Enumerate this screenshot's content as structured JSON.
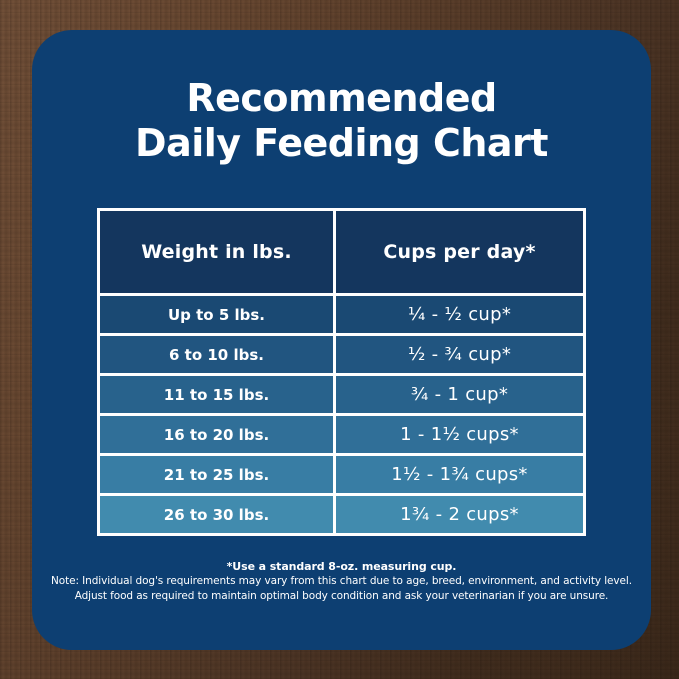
{
  "title": {
    "line1": "Recommended",
    "line2": "Daily Feeding Chart"
  },
  "table": {
    "headers": {
      "weight": "Weight in lbs.",
      "cups": "Cups per day*"
    },
    "rows": [
      {
        "weight": "Up to 5 lbs.",
        "cups": "¼ - ½ cup*"
      },
      {
        "weight": "6 to 10 lbs.",
        "cups": "½ - ¾ cup*"
      },
      {
        "weight": "11 to 15 lbs.",
        "cups": "¾ - 1 cup*"
      },
      {
        "weight": "16 to 20 lbs.",
        "cups": "1 - 1½ cups*"
      },
      {
        "weight": "21 to 25 lbs.",
        "cups": "1½ - 1¾ cups*"
      },
      {
        "weight": "26 to 30 lbs.",
        "cups": "1¾ - 2 cups*"
      }
    ],
    "header_color": "#14365e",
    "row_colors": [
      "#1a4973",
      "#215580",
      "#28628c",
      "#306f98",
      "#387da4",
      "#418bae"
    ],
    "border_color": "#ffffff"
  },
  "footnotes": {
    "line1": "*Use a standard 8-oz. measuring cup.",
    "line2": "Note: Individual dog's requirements may vary from this chart due to age, breed, environment, and activity level.",
    "line3": "Adjust food as required to maintain optimal body condition and ask your veterinarian if you are unsure."
  },
  "colors": {
    "card_background": "#0d3f72",
    "wood_light": "#74523a",
    "wood_dark": "#3a281a",
    "text": "#ffffff"
  },
  "chart_data": {
    "type": "table",
    "title": "Recommended Daily Feeding Chart",
    "columns": [
      "Weight in lbs.",
      "Cups per day*"
    ],
    "rows": [
      [
        "Up to 5 lbs.",
        "¼ - ½ cup*"
      ],
      [
        "6 to 10 lbs.",
        "½ - ¾ cup*"
      ],
      [
        "11 to 15 lbs.",
        "¾ - 1 cup*"
      ],
      [
        "16 to 20 lbs.",
        "1 - 1½ cups*"
      ],
      [
        "21 to 25 lbs.",
        "1½ - 1¾ cups*"
      ],
      [
        "26 to 30 lbs.",
        "1¾ - 2 cups*"
      ]
    ],
    "notes": [
      "*Use a standard 8-oz. measuring cup.",
      "Note: Individual dog's requirements may vary from this chart due to age, breed, environment, and activity level.",
      "Adjust food as required to maintain optimal body condition and ask your veterinarian if you are unsure."
    ]
  }
}
